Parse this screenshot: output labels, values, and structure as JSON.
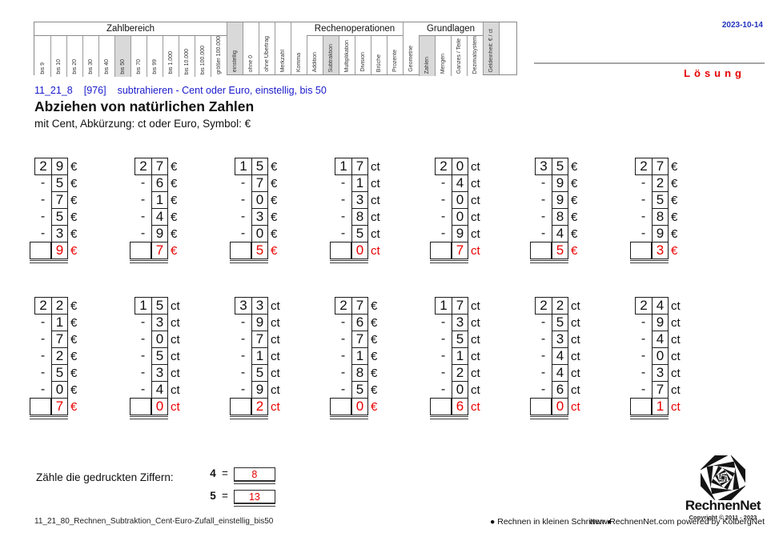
{
  "header": {
    "date": "2023-10-14",
    "solution_label": "Lösung"
  },
  "filter_table": {
    "groups": [
      {
        "label": "Zahlbereich",
        "items": [
          {
            "label": "bis 9"
          },
          {
            "label": "bis 10"
          },
          {
            "label": "bis 20"
          },
          {
            "label": "bis 30"
          },
          {
            "label": "bis 40"
          },
          {
            "label": "bis 50",
            "selected": true
          },
          {
            "label": "bis 70"
          },
          {
            "label": "bis 99"
          },
          {
            "label": "bis 1.000"
          },
          {
            "label": "bis 10.000"
          },
          {
            "label": "bis 100.000"
          },
          {
            "label": "größer 100.000"
          }
        ]
      },
      {
        "label": "",
        "items": [
          {
            "label": "einstellig",
            "selected": true
          },
          {
            "label": "ohne 0"
          },
          {
            "label": "ohne Übertrag"
          },
          {
            "label": "Merkzahl"
          },
          {
            "label": "Komma"
          }
        ]
      },
      {
        "label": "Rechenoperationen",
        "items": [
          {
            "label": "Addition"
          },
          {
            "label": "Subtraktion",
            "selected": true
          },
          {
            "label": "Multiplikation"
          },
          {
            "label": "Division"
          },
          {
            "label": "Brüche"
          },
          {
            "label": "Prozente"
          }
        ]
      },
      {
        "label": "",
        "items": [
          {
            "label": "Geometrie"
          }
        ]
      },
      {
        "label": "Grundlagen",
        "items": [
          {
            "label": "Zahlen",
            "selected": true
          },
          {
            "label": "Mengen"
          },
          {
            "label": "Ganzes / Teile"
          },
          {
            "label": "Dezimalsystem"
          }
        ]
      },
      {
        "label": "",
        "items": [
          {
            "label": "Geldeinheit: € / ct",
            "selected": true
          }
        ]
      },
      {
        "label": "",
        "items": [
          {
            "label": "",
            "spacer": true
          }
        ]
      }
    ]
  },
  "title": {
    "code": "11_21_8",
    "number": "[976]",
    "link_text": "subtrahieren - Cent oder Euro, einstellig, bis 50",
    "heading": "Abziehen von natürlichen Zahlen",
    "subheading": "mit Cent, Abkürzung: ct oder Euro, Symbol: €"
  },
  "problems": {
    "rows": [
      [
        {
          "start": "29",
          "unit": "€",
          "subtract": [
            "5",
            "7",
            "5",
            "3"
          ],
          "answer": "9"
        },
        {
          "start": "27",
          "unit": "€",
          "subtract": [
            "6",
            "1",
            "4",
            "9"
          ],
          "answer": "7"
        },
        {
          "start": "15",
          "unit": "€",
          "subtract": [
            "7",
            "0",
            "3",
            "0"
          ],
          "answer": "5"
        },
        {
          "start": "17",
          "unit": "ct",
          "subtract": [
            "1",
            "3",
            "8",
            "5"
          ],
          "answer": "0"
        },
        {
          "start": "20",
          "unit": "ct",
          "subtract": [
            "4",
            "0",
            "0",
            "9"
          ],
          "answer": "7"
        },
        {
          "start": "35",
          "unit": "€",
          "subtract": [
            "9",
            "9",
            "8",
            "4"
          ],
          "answer": "5"
        },
        {
          "start": "27",
          "unit": "€",
          "subtract": [
            "2",
            "5",
            "8",
            "9"
          ],
          "answer": "3"
        }
      ],
      [
        {
          "start": "22",
          "unit": "€",
          "subtract": [
            "1",
            "7",
            "2",
            "5",
            "0"
          ],
          "answer": "7"
        },
        {
          "start": "15",
          "unit": "ct",
          "subtract": [
            "3",
            "0",
            "5",
            "3",
            "4"
          ],
          "answer": "0"
        },
        {
          "start": "33",
          "unit": "ct",
          "subtract": [
            "9",
            "7",
            "1",
            "5",
            "9"
          ],
          "answer": "2"
        },
        {
          "start": "27",
          "unit": "€",
          "subtract": [
            "6",
            "7",
            "1",
            "8",
            "5"
          ],
          "answer": "0"
        },
        {
          "start": "17",
          "unit": "ct",
          "subtract": [
            "3",
            "5",
            "1",
            "2",
            "0"
          ],
          "answer": "6"
        },
        {
          "start": "22",
          "unit": "ct",
          "subtract": [
            "5",
            "3",
            "4",
            "4",
            "6"
          ],
          "answer": "0"
        },
        {
          "start": "24",
          "unit": "ct",
          "subtract": [
            "9",
            "4",
            "0",
            "3",
            "7"
          ],
          "answer": "1"
        }
      ]
    ]
  },
  "counting_task": {
    "label": "Zähle die gedruckten Ziffern:",
    "items": [
      {
        "digit": "4",
        "eq": "=",
        "count": "8"
      },
      {
        "digit": "5",
        "eq": "=",
        "count": "13"
      }
    ]
  },
  "footer": {
    "filename": "11_21_80_Rechnen_Subtraktion_Cent-Euro-Zufall_einstellig_bis50",
    "slogan": "● Rechnen in kleinen Schritten ●",
    "website": "www.RechnenNet.com powered by KolbergNet"
  },
  "logo": {
    "name": "RechnenNet",
    "copyright": "Copyright © 2011 - 2023"
  },
  "colors": {
    "link_blue": "#1a1acc",
    "answer_red": "#ea0000",
    "selected_gray": "#d9d9d9"
  }
}
